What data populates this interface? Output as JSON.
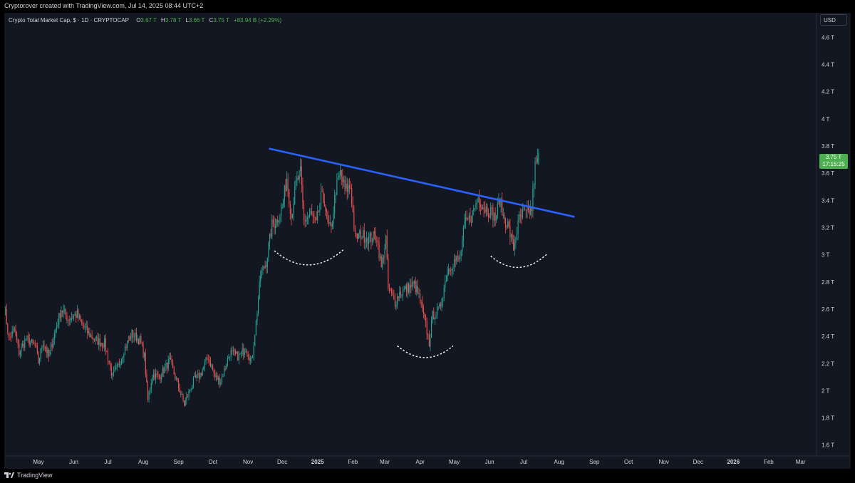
{
  "credit": "Cryptorover created with TradingView.com, Jul 14, 2025 08:44 UTC+2",
  "legend": {
    "symbol": "Crypto Total Market Cap, $ · 1D · CRYPTOCAP",
    "o_label": "O",
    "o_value": "3.67 T",
    "h_label": "H",
    "h_value": "3.78 T",
    "l_label": "L",
    "l_value": "3.66 T",
    "c_label": "C",
    "c_value": "3.75 T",
    "change": "+83.94 B (+2.29%)"
  },
  "currency_button": "USD",
  "last_price": {
    "value": "3.75 T",
    "countdown": "17:15:25"
  },
  "footer": {
    "brand": "TradingView"
  },
  "colors": {
    "up": "#26a69a",
    "up_bright": "#4caf50",
    "down": "#ef5350",
    "trendline": "#2962ff",
    "background": "#131722",
    "text": "#d1d4dc"
  },
  "chart_data": {
    "type": "candlestick",
    "title": "Crypto Total Market Cap, $ · 1D · CRYPTOCAP",
    "xlabel": "",
    "ylabel": "",
    "x_tick_labels": [
      "May",
      "Jun",
      "Jul",
      "Aug",
      "Sep",
      "Oct",
      "Nov",
      "Dec",
      "2025",
      "Feb",
      "Mar",
      "Apr",
      "May",
      "Jun",
      "Jul",
      "Aug",
      "Sep",
      "Oct",
      "Nov",
      "Dec",
      "2026",
      "Feb",
      "Mar"
    ],
    "x_ticks": [
      "2024-05-01",
      "2024-06-01",
      "2024-07-01",
      "2024-08-01",
      "2024-09-01",
      "2024-10-01",
      "2024-11-01",
      "2024-12-01",
      "2025-01-01",
      "2025-02-01",
      "2025-03-01",
      "2025-04-01",
      "2025-05-01",
      "2025-06-01",
      "2025-07-01",
      "2025-08-01",
      "2025-09-01",
      "2025-10-01",
      "2025-11-01",
      "2025-12-01",
      "2026-01-01",
      "2026-02-01",
      "2026-03-01"
    ],
    "y_tick_labels": [
      "1.6 T",
      "1.8 T",
      "2 T",
      "2.2 T",
      "2.4 T",
      "2.6 T",
      "2.8 T",
      "3 T",
      "3.2 T",
      "3.4 T",
      "3.6 T",
      "3.8 T",
      "4 T",
      "4.2 T",
      "4.4 T",
      "4.6 T"
    ],
    "y_ticks": [
      1.6,
      1.8,
      2.0,
      2.2,
      2.4,
      2.6,
      2.8,
      3.0,
      3.2,
      3.4,
      3.6,
      3.8,
      4.0,
      4.2,
      4.4,
      4.6
    ],
    "y_unit": "T (trillion USD)",
    "xlim": [
      "2024-04-01",
      "2026-03-15"
    ],
    "ylim": [
      1.52,
      4.78
    ],
    "grid": false,
    "series": [
      {
        "name": "Crypto Total Market Cap",
        "interval": "1D",
        "anchors": [
          [
            "2024-04-01",
            2.63
          ],
          [
            "2024-04-05",
            2.38
          ],
          [
            "2024-04-10",
            2.45
          ],
          [
            "2024-04-14",
            2.28
          ],
          [
            "2024-04-20",
            2.38
          ],
          [
            "2024-04-28",
            2.33
          ],
          [
            "2024-05-01",
            2.21
          ],
          [
            "2024-05-05",
            2.36
          ],
          [
            "2024-05-10",
            2.25
          ],
          [
            "2024-05-15",
            2.42
          ],
          [
            "2024-05-21",
            2.6
          ],
          [
            "2024-05-27",
            2.53
          ],
          [
            "2024-06-04",
            2.56
          ],
          [
            "2024-06-07",
            2.5
          ],
          [
            "2024-06-14",
            2.42
          ],
          [
            "2024-06-20",
            2.37
          ],
          [
            "2024-06-28",
            2.35
          ],
          [
            "2024-07-05",
            2.1
          ],
          [
            "2024-07-10",
            2.18
          ],
          [
            "2024-07-15",
            2.3
          ],
          [
            "2024-07-22",
            2.42
          ],
          [
            "2024-07-29",
            2.37
          ],
          [
            "2024-08-02",
            2.25
          ],
          [
            "2024-08-05",
            1.93
          ],
          [
            "2024-08-09",
            2.12
          ],
          [
            "2024-08-15",
            2.1
          ],
          [
            "2024-08-24",
            2.22
          ],
          [
            "2024-08-30",
            2.08
          ],
          [
            "2024-09-06",
            1.9
          ],
          [
            "2024-09-14",
            2.07
          ],
          [
            "2024-09-20",
            2.12
          ],
          [
            "2024-09-27",
            2.25
          ],
          [
            "2024-10-03",
            2.1
          ],
          [
            "2024-10-08",
            2.07
          ],
          [
            "2024-10-16",
            2.28
          ],
          [
            "2024-10-24",
            2.25
          ],
          [
            "2024-10-30",
            2.32
          ],
          [
            "2024-11-04",
            2.21
          ],
          [
            "2024-11-08",
            2.5
          ],
          [
            "2024-11-12",
            2.85
          ],
          [
            "2024-11-17",
            2.95
          ],
          [
            "2024-11-22",
            3.22
          ],
          [
            "2024-11-26",
            3.25
          ],
          [
            "2024-12-01",
            3.35
          ],
          [
            "2024-12-05",
            3.57
          ],
          [
            "2024-12-09",
            3.28
          ],
          [
            "2024-12-13",
            3.52
          ],
          [
            "2024-12-17",
            3.6
          ],
          [
            "2024-12-20",
            3.25
          ],
          [
            "2024-12-26",
            3.3
          ],
          [
            "2024-12-31",
            3.22
          ],
          [
            "2025-01-04",
            3.42
          ],
          [
            "2025-01-07",
            3.4
          ],
          [
            "2025-01-10",
            3.22
          ],
          [
            "2025-01-13",
            3.18
          ],
          [
            "2025-01-17",
            3.48
          ],
          [
            "2025-01-21",
            3.6
          ],
          [
            "2025-01-25",
            3.48
          ],
          [
            "2025-01-30",
            3.5
          ],
          [
            "2025-02-03",
            3.12
          ],
          [
            "2025-02-08",
            3.15
          ],
          [
            "2025-02-15",
            3.12
          ],
          [
            "2025-02-22",
            3.14
          ],
          [
            "2025-02-26",
            2.9
          ],
          [
            "2025-03-02",
            3.12
          ],
          [
            "2025-03-04",
            2.75
          ],
          [
            "2025-03-10",
            2.65
          ],
          [
            "2025-03-14",
            2.72
          ],
          [
            "2025-03-20",
            2.75
          ],
          [
            "2025-03-27",
            2.78
          ],
          [
            "2025-03-31",
            2.69
          ],
          [
            "2025-04-06",
            2.48
          ],
          [
            "2025-04-09",
            2.35
          ],
          [
            "2025-04-12",
            2.55
          ],
          [
            "2025-04-18",
            2.6
          ],
          [
            "2025-04-25",
            2.88
          ],
          [
            "2025-04-30",
            2.95
          ],
          [
            "2025-05-06",
            2.97
          ],
          [
            "2025-05-10",
            3.22
          ],
          [
            "2025-05-16",
            3.28
          ],
          [
            "2025-05-22",
            3.42
          ],
          [
            "2025-05-27",
            3.35
          ],
          [
            "2025-06-03",
            3.31
          ],
          [
            "2025-06-06",
            3.27
          ],
          [
            "2025-06-10",
            3.4
          ],
          [
            "2025-06-13",
            3.28
          ],
          [
            "2025-06-17",
            3.22
          ],
          [
            "2025-06-22",
            3.05
          ],
          [
            "2025-06-27",
            3.26
          ],
          [
            "2025-07-01",
            3.3
          ],
          [
            "2025-07-04",
            3.3
          ],
          [
            "2025-07-08",
            3.34
          ],
          [
            "2025-07-10",
            3.55
          ],
          [
            "2025-07-11",
            3.65
          ],
          [
            "2025-07-13",
            3.68
          ],
          [
            "2025-07-14",
            3.75
          ]
        ],
        "last": {
          "open": 3.67,
          "high": 3.78,
          "low": 3.66,
          "close": 3.75
        }
      }
    ],
    "overlays": {
      "trendline": {
        "start": [
          "2024-11-20",
          3.78
        ],
        "end": [
          "2025-08-14",
          3.28
        ]
      },
      "arcs": [
        {
          "start": [
            "2024-11-24",
            3.03
          ],
          "end": [
            "2025-01-24",
            3.04
          ]
        },
        {
          "start": [
            "2025-03-12",
            2.33
          ],
          "end": [
            "2025-04-30",
            2.33
          ]
        },
        {
          "start": [
            "2025-06-02",
            2.99
          ],
          "end": [
            "2025-07-22",
            3.01
          ]
        }
      ]
    }
  }
}
